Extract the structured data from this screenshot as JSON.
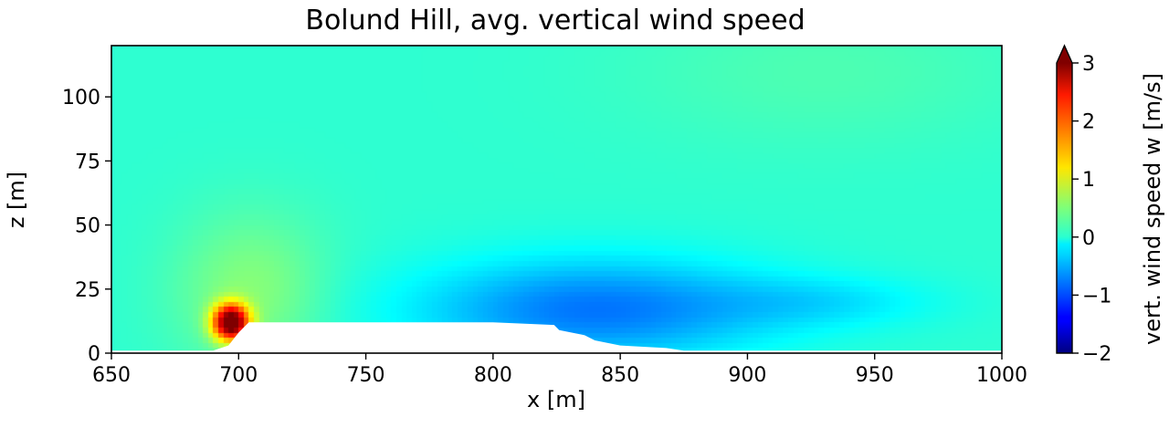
{
  "chart_data": {
    "type": "heatmap",
    "title": "Bolund Hill, avg. vertical wind speed",
    "xlabel": "x [m]",
    "ylabel": "z [m]",
    "xlim": [
      650,
      1000
    ],
    "ylim": [
      0,
      120
    ],
    "xticks": [
      650,
      700,
      750,
      800,
      850,
      900,
      950,
      1000
    ],
    "yticks": [
      0,
      25,
      50,
      75,
      100
    ],
    "xtick_labels": [
      "650",
      "700",
      "750",
      "800",
      "850",
      "900",
      "950",
      "1000"
    ],
    "ytick_labels": [
      "0",
      "25",
      "50",
      "75",
      "100"
    ],
    "colormap": "jet",
    "colorbar": {
      "label": "vert. wind speed w [m/s]",
      "range": [
        -2,
        3
      ],
      "ticks": [
        -2,
        -1,
        0,
        1,
        2,
        3
      ],
      "tick_labels": [
        "−2",
        "−1",
        "0",
        "1",
        "2",
        "3"
      ],
      "extend": "max"
    },
    "field_features": [
      {
        "feature": "updraft",
        "x": 697,
        "z": 12,
        "w": 3.2
      },
      {
        "feature": "downdraft region",
        "x_range": [
          800,
          900
        ],
        "z_range": [
          8,
          30
        ],
        "w": -0.8
      },
      {
        "feature": "background",
        "w": 0.1
      }
    ],
    "terrain_profile": [
      [
        650,
        1
      ],
      [
        690,
        1
      ],
      [
        696,
        3
      ],
      [
        700,
        8
      ],
      [
        704,
        12
      ],
      [
        712,
        12
      ],
      [
        720,
        12
      ],
      [
        796,
        12
      ],
      [
        800,
        12
      ],
      [
        824,
        11
      ],
      [
        826,
        9
      ],
      [
        836,
        7
      ],
      [
        840,
        5
      ],
      [
        850,
        3
      ],
      [
        868,
        2
      ],
      [
        875,
        1
      ],
      [
        1000,
        1
      ]
    ]
  }
}
